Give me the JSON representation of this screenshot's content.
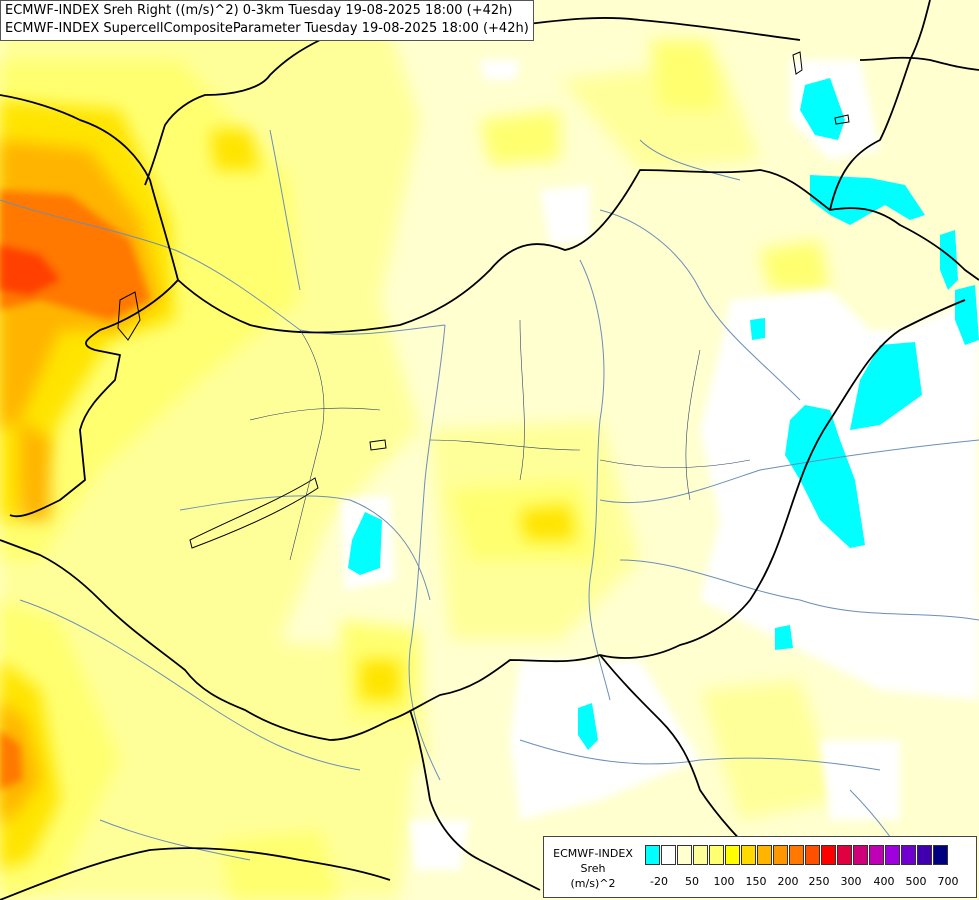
{
  "title_lines": [
    "ECMWF-INDEX Sreh Right ((m/s)^2) 0-3km Tuesday 19-08-2025 18:00 (+42h)",
    "ECMWF-INDEX SupercellCompositeParameter Tuesday 19-08-2025 18:00 (+42h)"
  ],
  "legend": {
    "line1": "ECMWF-INDEX",
    "line2": "Sreh",
    "line3": "(m/s)^2",
    "colors": [
      "#00ffff",
      "#ffffff",
      "#ffffd0",
      "#ffff9a",
      "#ffff70",
      "#ffff00",
      "#ffd900",
      "#ffb400",
      "#ff9600",
      "#ff7800",
      "#ff5000",
      "#ff0000",
      "#e10040",
      "#d0007a",
      "#c000b4",
      "#a000e0",
      "#7000d0",
      "#4000b0",
      "#000080"
    ],
    "ticks": [
      "-20",
      "50",
      "100",
      "150",
      "200",
      "250",
      "300",
      "400",
      "500",
      "700"
    ]
  },
  "palette": {
    "background": "#ffffd0",
    "pale_yellow": "#ffff9a",
    "yellow": "#ffff70",
    "gold": "#ffe400",
    "orange": "#ffb400",
    "dark_orange": "#ff7800",
    "red_orange": "#ff4000",
    "cyan": "#00ffff",
    "white": "#ffffff",
    "border": "#000000",
    "river": "#6a8fb8"
  }
}
